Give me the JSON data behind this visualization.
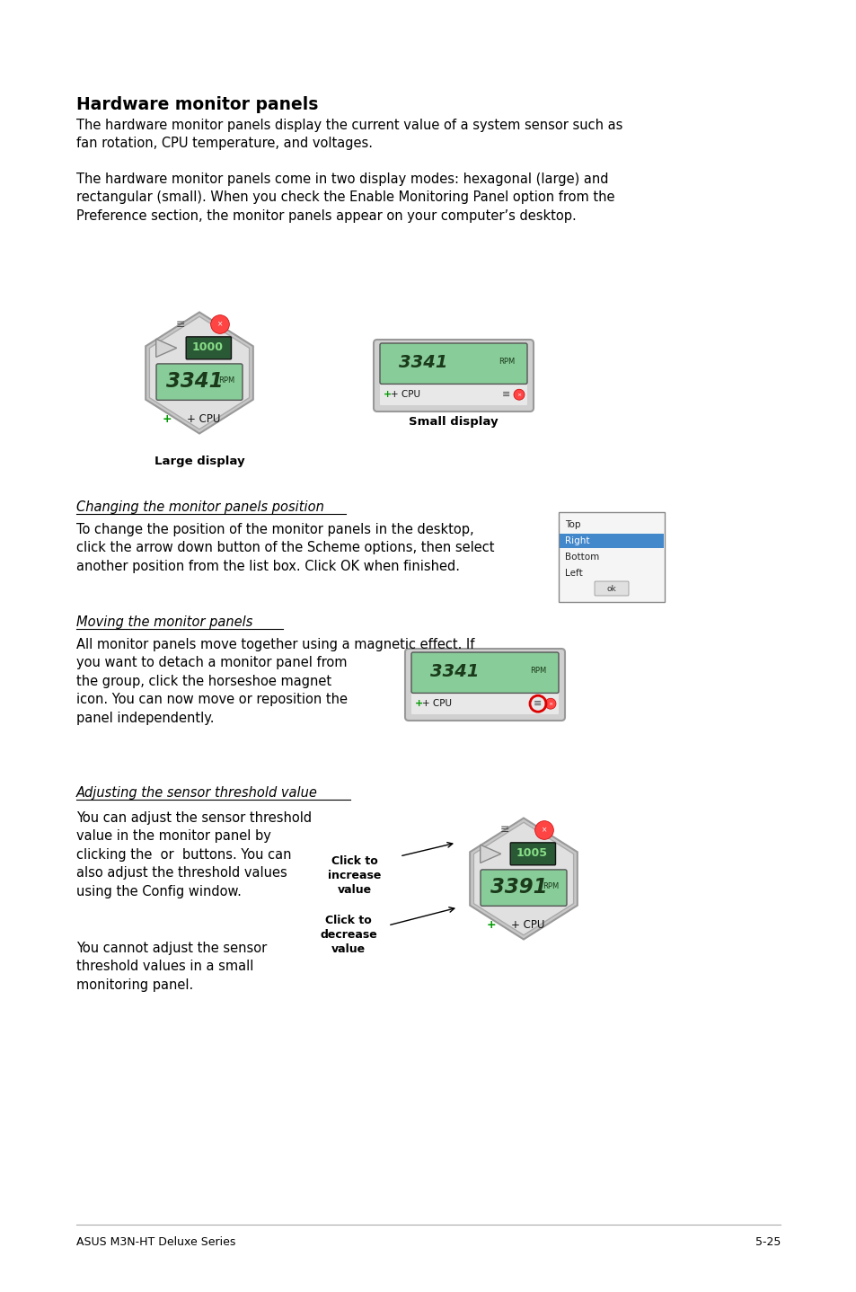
{
  "title": "Hardware monitor panels",
  "para1": "The hardware monitor panels display the current value of a system sensor such as\nfan rotation, CPU temperature, and voltages.",
  "para2": "The hardware monitor panels come in two display modes: hexagonal (large) and\nrectangular (small). When you check the Enable Monitoring Panel option from the\nPreference section, the monitor panels appear on your computer’s desktop.",
  "section1_title": "Changing the monitor panels position",
  "section1_text": "To change the position of the monitor panels in the desktop,\nclick the arrow down button of the Scheme options, then select\nanother position from the list box. Click OK when finished.",
  "section2_title": "Moving the monitor panels",
  "section2_text": "All monitor panels move together using a magnetic effect. If\nyou want to detach a monitor panel from\nthe group, click the horseshoe magnet\nicon. You can now move or reposition the\npanel independently.",
  "section3_title": "Adjusting the sensor threshold value",
  "section3_text1": "You can adjust the sensor threshold\nvalue in the monitor panel by\nclicking the  or  buttons. You can\nalso adjust the threshold values\nusing the Config window.",
  "section3_text2": "You cannot adjust the sensor\nthreshold values in a small\nmonitoring panel.",
  "label_large": "Large display",
  "label_small": "Small display",
  "label_increase": "Click to\nincrease\nvalue",
  "label_decrease": "Click to\ndecrease\nvalue",
  "footer_left": "ASUS M3N-HT Deluxe Series",
  "footer_right": "5-25",
  "bg_color": "#ffffff",
  "text_color": "#000000",
  "green_lcd": "#88cc99",
  "dark_green_lcd": "#2a5a35",
  "panel_gray": "#cccccc",
  "panel_light": "#e8e8e8",
  "teal_plus": "#009900",
  "dropdown_items": [
    "Top",
    "Right",
    "Bottom",
    "Left"
  ],
  "highlight_item": "Right",
  "lcd_main_color": "#1a3a1a",
  "lcd_secondary_color": "#88dd88",
  "red_btn": "#ff4444",
  "red_btn_edge": "#cc0000"
}
